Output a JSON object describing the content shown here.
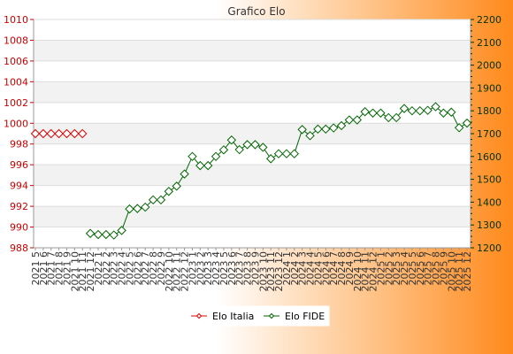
{
  "chart_data": {
    "type": "line",
    "title": "Grafico Elo",
    "categories": [
      "2021 5",
      "2021 6",
      "2021 7",
      "2021 8",
      "2021 9",
      "2021 10",
      "2021 11",
      "2021 12",
      "2022 1",
      "2022 2",
      "2022 3",
      "2022 4",
      "2022 5",
      "2022 6",
      "2022 7",
      "2022 8",
      "2022 9",
      "2022 10",
      "2022 11",
      "2022 12",
      "2023 1",
      "2023 2",
      "2023 3",
      "2023 4",
      "2023 5",
      "2023 6",
      "2023 7",
      "2023 8",
      "2023 9",
      "2023 10",
      "2023 11",
      "2023 12",
      "2024 1",
      "2024 2",
      "2024 3",
      "2024 4",
      "2024 5",
      "2024 6",
      "2024 7",
      "2024 8",
      "2024 9",
      "2024 10",
      "2024 11",
      "2024 12",
      "2025 1",
      "2025 2",
      "2025 3",
      "2025 4",
      "2025 5",
      "2025 6",
      "2025 7",
      "2025 8",
      "2025 9",
      "2025 10",
      "2025 11",
      "2025 12"
    ],
    "y_left": {
      "ylim": [
        988,
        1010
      ],
      "ticks": [
        988,
        990,
        992,
        994,
        996,
        998,
        1000,
        1002,
        1004,
        1006,
        1008,
        1010
      ],
      "color": "#cc0000"
    },
    "y_right": {
      "ylim": [
        1200,
        2200
      ],
      "ticks": [
        1200,
        1300,
        1400,
        1500,
        1600,
        1700,
        1800,
        1900,
        2000,
        2100,
        2200
      ],
      "color": "#003300"
    },
    "grid": true,
    "legend_position": "bottom-center",
    "series": [
      {
        "name": "Elo Italia",
        "axis": "left",
        "color": "#dd0000",
        "values": [
          999,
          999,
          999,
          999,
          999,
          999,
          999,
          null,
          null,
          null,
          null,
          null,
          null,
          null,
          null,
          null,
          null,
          null,
          null,
          null,
          null,
          null,
          null,
          null,
          null,
          null,
          null,
          null,
          null,
          null,
          null,
          null,
          null,
          null,
          null,
          null,
          null,
          null,
          null,
          null,
          null,
          null,
          null,
          null,
          null,
          null,
          null,
          null,
          null,
          null,
          null,
          null,
          null,
          null,
          null,
          null
        ]
      },
      {
        "name": "Elo FIDE",
        "axis": "right",
        "color": "#006600",
        "values": [
          null,
          null,
          null,
          null,
          null,
          null,
          null,
          1263,
          1258,
          1258,
          1256,
          1276,
          1370,
          1372,
          1378,
          1410,
          1410,
          1447,
          1470,
          1523,
          1600,
          1560,
          1560,
          1600,
          1629,
          1672,
          1630,
          1652,
          1652,
          1640,
          1590,
          1612,
          1612,
          1612,
          1718,
          1691,
          1720,
          1720,
          1725,
          1735,
          1760,
          1760,
          1796,
          1790,
          1790,
          1770,
          1770,
          1810,
          1800,
          1800,
          1802,
          1818,
          1790,
          1794,
          1726,
          1746
        ]
      }
    ]
  }
}
